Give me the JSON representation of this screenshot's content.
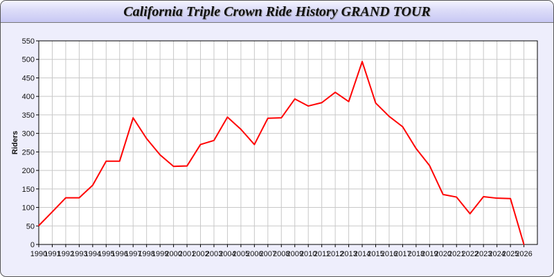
{
  "chart_data": {
    "type": "line",
    "title": "California Triple Crown Ride History GRAND TOUR",
    "xlabel": "",
    "ylabel": "Riders",
    "xlim": [
      1990,
      2027
    ],
    "ylim": [
      0,
      550
    ],
    "grid": true,
    "x_ticks": [
      "1990",
      "1991",
      "1992",
      "1993",
      "1994",
      "1995",
      "1996",
      "1997",
      "1998",
      "1999",
      "2000",
      "2001",
      "2002",
      "2003",
      "2004",
      "2005",
      "2006",
      "2007",
      "2008",
      "2009",
      "2010",
      "2011",
      "2012",
      "2013",
      "2014",
      "2015",
      "2016",
      "2017",
      "2018",
      "2019",
      "2020",
      "2021",
      "2022",
      "2023",
      "2024",
      "2025",
      "2026"
    ],
    "y_ticks": [
      "0",
      "50",
      "100",
      "150",
      "200",
      "250",
      "300",
      "350",
      "400",
      "450",
      "500",
      "550"
    ],
    "series": [
      {
        "color": "#ff0000",
        "x": [
          1990,
          1991,
          1992,
          1993,
          1994,
          1995,
          1996,
          1997,
          1998,
          1999,
          2000,
          2001,
          2002,
          2003,
          2004,
          2005,
          2006,
          2007,
          2008,
          2009,
          2010,
          2011,
          2012,
          2013,
          2014,
          2015,
          2016,
          2017,
          2018,
          2019,
          2020,
          2021,
          2022,
          2023,
          2024,
          2025,
          2026
        ],
        "y": [
          51,
          88,
          126,
          126,
          160,
          225,
          225,
          342,
          286,
          242,
          211,
          212,
          270,
          281,
          344,
          311,
          270,
          341,
          342,
          393,
          374,
          383,
          411,
          386,
          494,
          382,
          346,
          318,
          259,
          213,
          135,
          128,
          83,
          129,
          125,
          124,
          0
        ]
      }
    ]
  }
}
